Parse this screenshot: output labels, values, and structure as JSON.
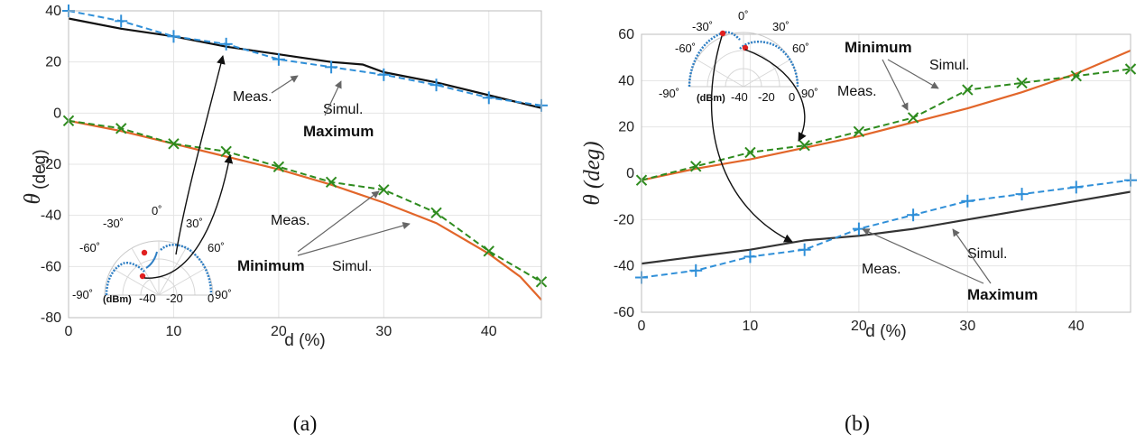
{
  "chart_data": [
    {
      "type": "line",
      "caption": "(a)",
      "xlabel": "d (%)",
      "ylabel_symbol": "θ",
      "ylabel_unit": "(deg)",
      "xlim": [
        0,
        45
      ],
      "ylim": [
        -80,
        40
      ],
      "xticks": [
        0,
        10,
        20,
        30,
        40
      ],
      "yticks": [
        -80,
        -60,
        -40,
        -20,
        0,
        20,
        40
      ],
      "grid": true,
      "series": [
        {
          "group": "max",
          "kind": "meas",
          "color": "#2f8fd8",
          "marker": "plus",
          "x": [
            0,
            5,
            10,
            15,
            20,
            25,
            30,
            35,
            40,
            45
          ],
          "y": [
            40,
            36,
            30,
            27,
            21,
            18,
            15,
            11,
            6,
            3
          ]
        },
        {
          "group": "max",
          "kind": "simul",
          "color": "#111111",
          "x": [
            0,
            5,
            10,
            15,
            20,
            25,
            28,
            30,
            35,
            40,
            45
          ],
          "y": [
            37,
            33,
            30,
            26,
            23,
            20,
            19,
            16,
            12,
            7,
            2
          ]
        },
        {
          "group": "min",
          "kind": "meas",
          "color": "#2e8b1e",
          "marker": "x",
          "x": [
            0,
            5,
            10,
            15,
            20,
            25,
            30,
            35,
            40,
            45
          ],
          "y": [
            -3,
            -6,
            -12,
            -15,
            -21,
            -27,
            -30,
            -39,
            -54,
            -66
          ]
        },
        {
          "group": "min",
          "kind": "simul",
          "color": "#e2662a",
          "x": [
            0,
            5,
            10,
            15,
            20,
            25,
            30,
            35,
            40,
            43,
            45
          ],
          "y": [
            -3,
            -7,
            -12,
            -17,
            -22,
            -28,
            -35,
            -43,
            -55,
            -64,
            -73
          ]
        }
      ],
      "annotations": {
        "max_meas": "Meas.",
        "max_simul": "Simul.",
        "max_label": "Maximum",
        "min_meas": "Meas.",
        "min_simul": "Simul.",
        "min_label": "Minimum"
      },
      "polar_inset": {
        "ticks": [
          "-90",
          "-60",
          "-30",
          "0",
          "30",
          "60",
          "90"
        ],
        "tick_units": [
          "˚",
          "˚",
          "˚",
          "˚",
          "˚",
          "˚",
          "˚"
        ],
        "radial": [
          "(dBm)",
          "-40",
          "-20",
          "0"
        ]
      }
    },
    {
      "type": "line",
      "caption": "(b)",
      "xlabel": "d (%)",
      "ylabel": "θ (deg)",
      "xlim": [
        0,
        45
      ],
      "ylim": [
        -60,
        60
      ],
      "xticks": [
        0,
        10,
        20,
        30,
        40
      ],
      "yticks": [
        -60,
        -40,
        -20,
        0,
        20,
        40,
        60
      ],
      "grid": true,
      "series": [
        {
          "group": "min",
          "kind": "meas",
          "color": "#2e8b1e",
          "marker": "x",
          "x": [
            0,
            5,
            10,
            15,
            20,
            25,
            30,
            35,
            40,
            45
          ],
          "y": [
            -3,
            3,
            9,
            12,
            18,
            24,
            36,
            39,
            42,
            45
          ]
        },
        {
          "group": "min",
          "kind": "simul",
          "color": "#e2662a",
          "x": [
            0,
            5,
            10,
            15,
            20,
            25,
            30,
            35,
            40,
            45
          ],
          "y": [
            -3,
            2,
            6,
            11,
            16,
            22,
            28,
            35,
            43,
            53
          ]
        },
        {
          "group": "max",
          "kind": "meas",
          "color": "#2f8fd8",
          "marker": "plus",
          "x": [
            0,
            5,
            10,
            15,
            20,
            25,
            30,
            35,
            40,
            45
          ],
          "y": [
            -45,
            -42,
            -36,
            -33,
            -24,
            -18,
            -12,
            -9,
            -6,
            -3
          ]
        },
        {
          "group": "max",
          "kind": "simul",
          "color": "#333333",
          "x": [
            0,
            5,
            10,
            15,
            20,
            25,
            30,
            35,
            40,
            45
          ],
          "y": [
            -39,
            -36,
            -33,
            -29,
            -27,
            -24,
            -20,
            -16,
            -12,
            -8
          ]
        }
      ],
      "annotations": {
        "min_label": "Minimum",
        "min_simul": "Simul.",
        "min_meas": "Meas.",
        "max_simul": "Simul.",
        "max_meas": "Meas.",
        "max_label": "Maximum"
      },
      "polar_inset": {
        "ticks": [
          "-90",
          "-60",
          "-30",
          "0",
          "30",
          "60",
          "90"
        ],
        "tick_units": [
          "˚",
          "˚",
          "˚",
          "˚",
          "˚",
          "˚",
          "˚"
        ],
        "radial": [
          "(dBm)",
          "-40",
          "-20",
          "0"
        ]
      }
    }
  ]
}
